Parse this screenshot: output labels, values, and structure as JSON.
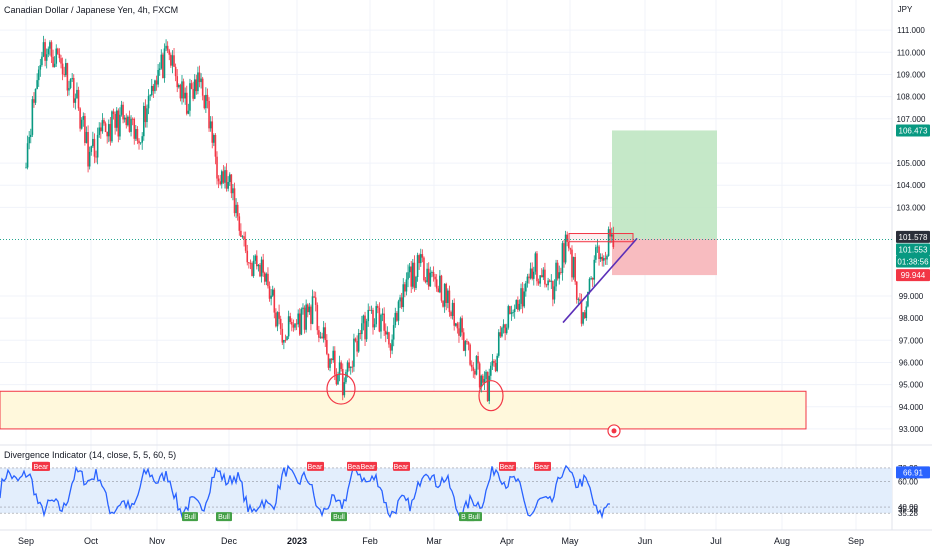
{
  "header": {
    "symbol_title": "Canadian Dollar / Japanese Yen, 4h, FXCM"
  },
  "price_axis": {
    "currency": "JPY",
    "ticks": [
      "111.000",
      "110.000",
      "109.000",
      "108.000",
      "107.000",
      "105.000",
      "104.000",
      "103.000",
      "99.000",
      "98.000",
      "97.000",
      "96.000",
      "95.000",
      "94.000",
      "93.000"
    ],
    "tick_values": [
      111,
      110,
      109,
      108,
      107,
      105,
      104,
      103,
      99,
      98,
      97,
      96,
      95,
      94,
      93
    ],
    "badges": {
      "target": {
        "label": "106.473",
        "value": 106.473,
        "color": "#089981"
      },
      "last": {
        "label": "101.578",
        "value": 101.578,
        "color": "#2a2e39"
      },
      "current": {
        "label": "101.553",
        "value": 101.553,
        "color": "#089981"
      },
      "countdown": {
        "label": "01:38:56",
        "color": "#089981"
      },
      "stop": {
        "label": "99.944",
        "value": 99.944,
        "color": "#f23645"
      }
    }
  },
  "time_axis": {
    "labels": [
      "Sep",
      "Oct",
      "Nov",
      "Dec",
      "2023",
      "Feb",
      "Mar",
      "Apr",
      "May",
      "Jun",
      "Jul",
      "Aug",
      "Sep"
    ],
    "bold": [
      "2023"
    ]
  },
  "drawings": {
    "profit_zone": {
      "top": 106.473,
      "bottom": 101.578,
      "color": "#bfe6c2"
    },
    "loss_zone": {
      "top": 101.578,
      "bottom": 99.944,
      "color": "#f7b5b9"
    },
    "support_zone": {
      "top": 94.7,
      "bottom": 93.0,
      "color": "#fff8dc",
      "border": "#f23645"
    },
    "resistance_box": {
      "top": 101.82,
      "bottom": 101.45,
      "color": "#f23645"
    },
    "triangle_line_color": "#5b2fb8"
  },
  "indicator": {
    "title": "Divergence Indicator (14, close, 5, 5, 60, 5)",
    "current_value": "66.91",
    "axis_ticks": [
      "70.39",
      "70.39",
      "60.00",
      "40.00",
      "35.28",
      "35.28"
    ],
    "axis_values": [
      70.39,
      70.39,
      60,
      40,
      35.28,
      35.28
    ],
    "bear_label": "Bear",
    "bull_label": "Bull",
    "line_color": "#2962ff",
    "band_color": "#e3eefc"
  },
  "chart_data": {
    "type": "candlestick",
    "title": "Canadian Dollar / Japanese Yen, 4h, FXCM",
    "x_range": [
      "2022-09",
      "2023-09"
    ],
    "ylim": [
      92.5,
      112
    ],
    "series": [
      {
        "name": "CADJPY",
        "points": [
          {
            "x": "2022-09-01",
            "y": 105.5
          },
          {
            "x": "2022-09-08",
            "y": 110.2
          },
          {
            "x": "2022-09-15",
            "y": 109.8
          },
          {
            "x": "2022-09-22",
            "y": 108.4
          },
          {
            "x": "2022-09-29",
            "y": 105.2
          },
          {
            "x": "2022-10-06",
            "y": 106.5
          },
          {
            "x": "2022-10-13",
            "y": 107.0
          },
          {
            "x": "2022-10-20",
            "y": 106.0
          },
          {
            "x": "2022-10-27",
            "y": 108.8
          },
          {
            "x": "2022-11-03",
            "y": 109.8
          },
          {
            "x": "2022-11-10",
            "y": 107.6
          },
          {
            "x": "2022-11-17",
            "y": 108.8
          },
          {
            "x": "2022-11-24",
            "y": 105.0
          },
          {
            "x": "2022-12-01",
            "y": 103.5
          },
          {
            "x": "2022-12-08",
            "y": 100.5
          },
          {
            "x": "2022-12-15",
            "y": 100.2
          },
          {
            "x": "2022-12-22",
            "y": 97.2
          },
          {
            "x": "2022-12-29",
            "y": 97.8
          },
          {
            "x": "2023-01-05",
            "y": 98.5
          },
          {
            "x": "2023-01-12",
            "y": 96.2
          },
          {
            "x": "2023-01-19",
            "y": 95.0
          },
          {
            "x": "2023-01-26",
            "y": 97.5
          },
          {
            "x": "2023-02-02",
            "y": 98.2
          },
          {
            "x": "2023-02-09",
            "y": 97.0
          },
          {
            "x": "2023-02-16",
            "y": 99.8
          },
          {
            "x": "2023-02-23",
            "y": 100.4
          },
          {
            "x": "2023-03-02",
            "y": 99.5
          },
          {
            "x": "2023-03-09",
            "y": 97.8
          },
          {
            "x": "2023-03-16",
            "y": 96.3
          },
          {
            "x": "2023-03-23",
            "y": 94.8
          },
          {
            "x": "2023-03-30",
            "y": 97.5
          },
          {
            "x": "2023-04-06",
            "y": 98.8
          },
          {
            "x": "2023-04-13",
            "y": 100.3
          },
          {
            "x": "2023-04-20",
            "y": 99.2
          },
          {
            "x": "2023-04-27",
            "y": 101.6
          },
          {
            "x": "2023-05-04",
            "y": 98.0
          },
          {
            "x": "2023-05-11",
            "y": 101.2
          },
          {
            "x": "2023-05-18",
            "y": 101.55
          }
        ]
      }
    ],
    "indicator_series": [
      {
        "name": "Divergence Indicator",
        "ylim": [
          30,
          75
        ],
        "current": 66.91
      }
    ]
  }
}
